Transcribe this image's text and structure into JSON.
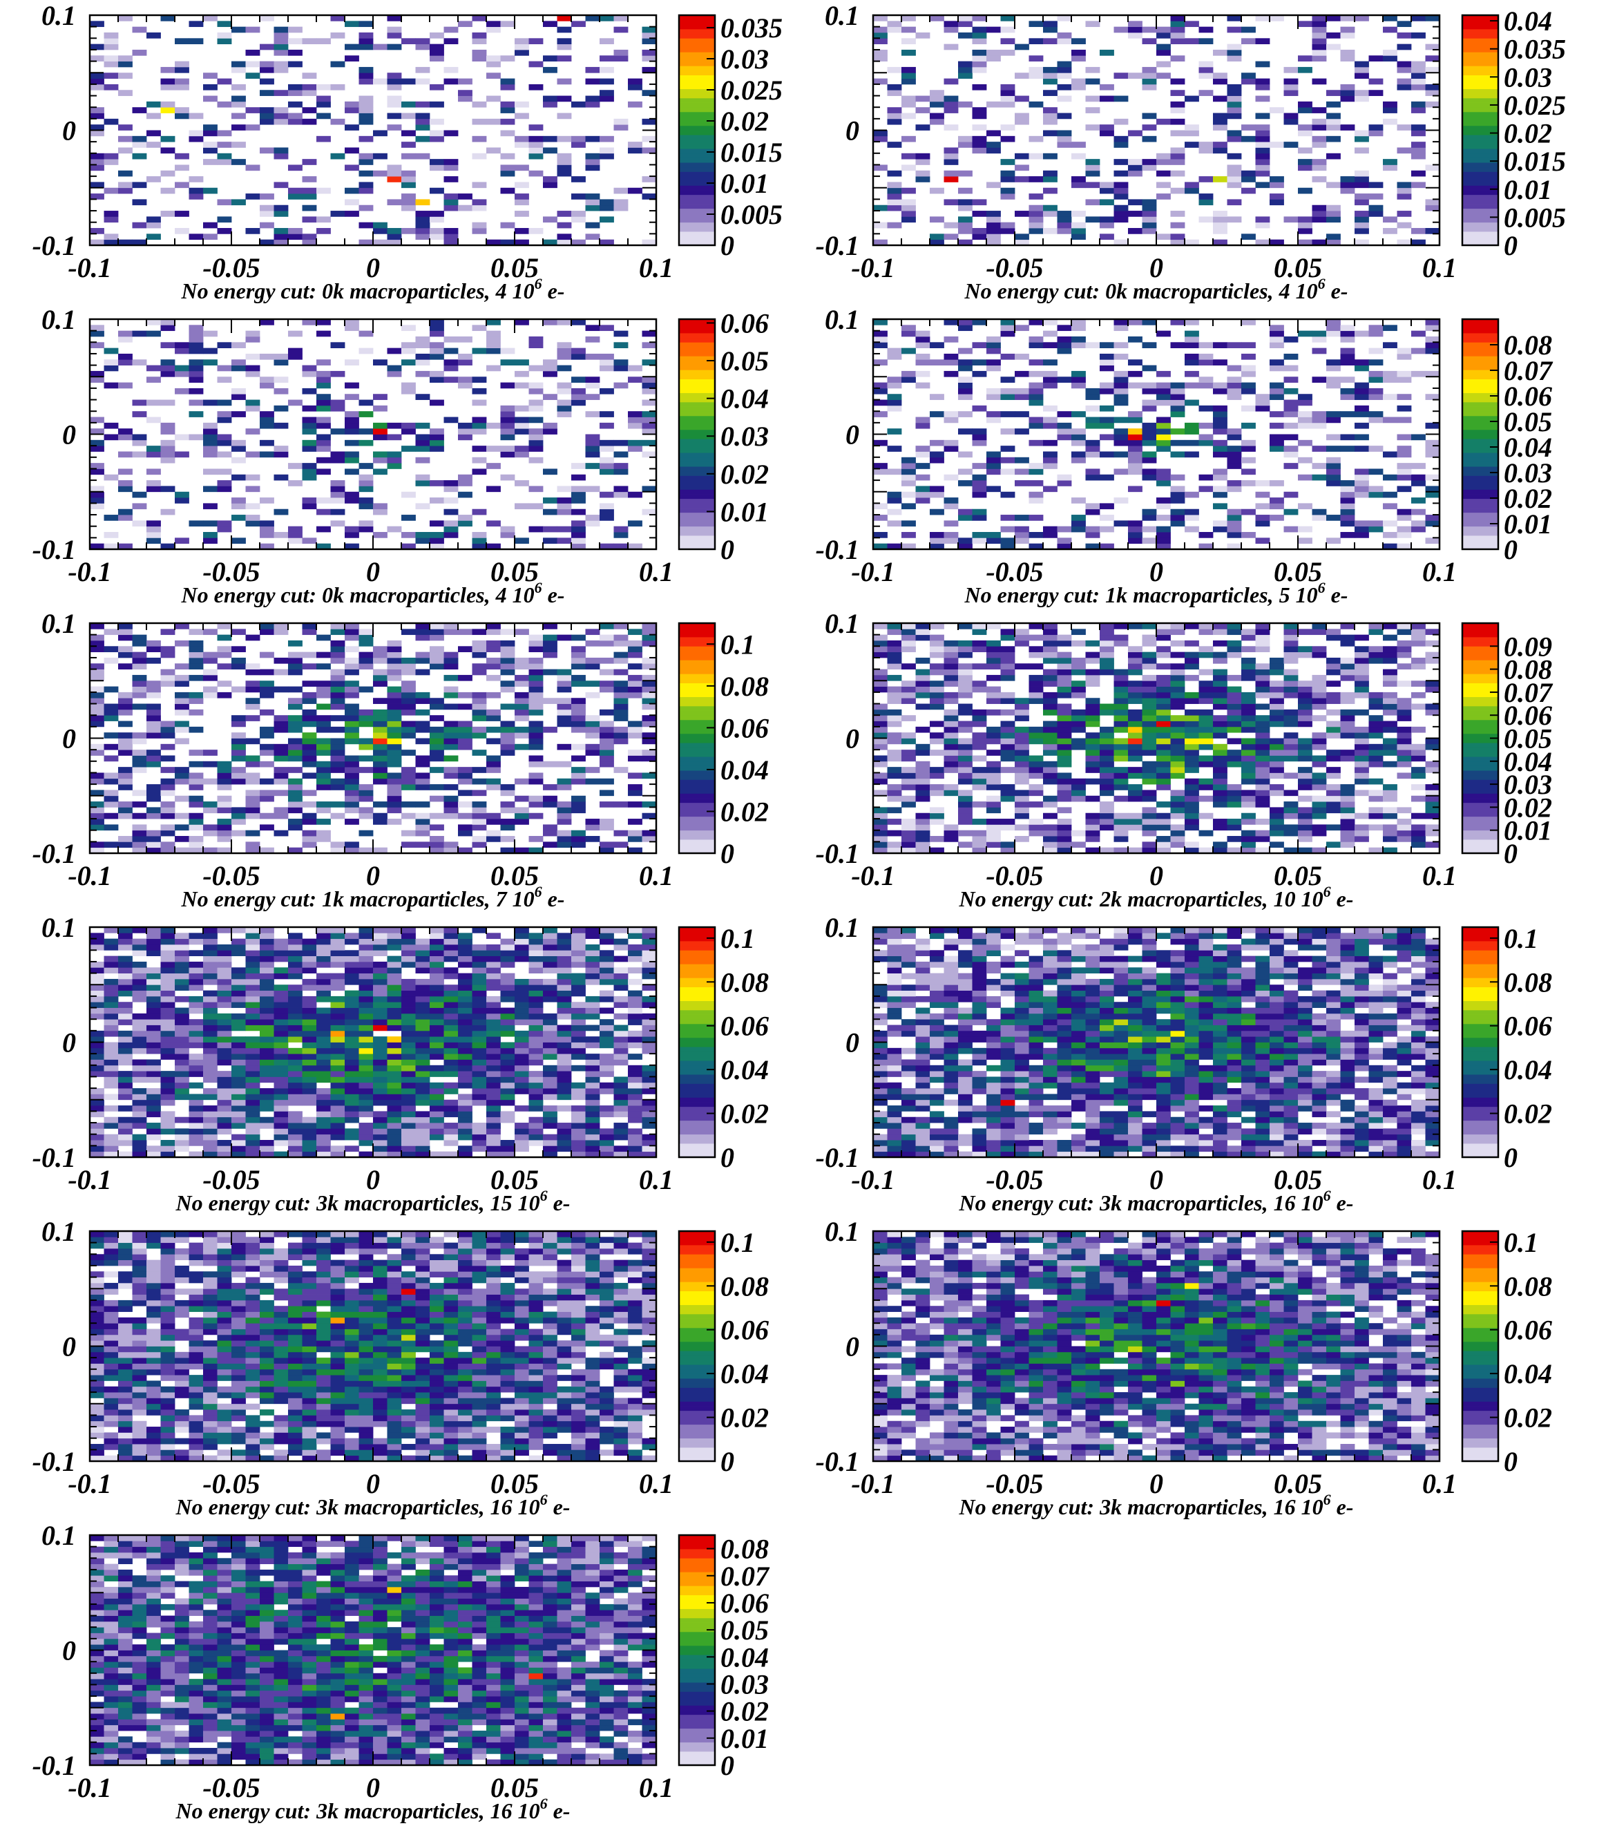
{
  "figure": {
    "columns": 2,
    "colormap": [
      "#ffffff",
      "#e0dcef",
      "#b7acd7",
      "#8c78c0",
      "#5b3fa6",
      "#2d0f8a",
      "#1e2a86",
      "#17457f",
      "#136a7c",
      "#147f67",
      "#1a8c3a",
      "#3aa62a",
      "#7fc31c",
      "#c6d80e",
      "#fff200",
      "#ffc800",
      "#ff9b00",
      "#ff6a00",
      "#f72d0a",
      "#e00000"
    ]
  },
  "chart_data": [
    {
      "type": "heatmap",
      "title": "",
      "caption": "No energy cut: 0k macroparticles, 4 10⁶ e-",
      "caption_main": "No energy cut: 0k macroparticles, 4 10",
      "caption_sup": "6",
      "caption_tail": " e-",
      "xlim": [
        -0.1,
        0.1
      ],
      "ylim": [
        -0.1,
        0.1
      ],
      "x_ticks": [
        "-0.1",
        "-0.05",
        "0",
        "0.05",
        "0.1"
      ],
      "y_ticks": [
        "-0.1",
        "0",
        "0.1"
      ],
      "z_range": [
        0,
        0.037
      ],
      "z_ticks": [
        "0",
        "0.005",
        "0.01",
        "0.015",
        "0.02",
        "0.025",
        "0.03",
        "0.035"
      ],
      "z_tick_values": [
        0,
        0.005,
        0.01,
        0.015,
        0.02,
        0.025,
        0.03,
        0.035
      ],
      "bins": [
        40,
        40
      ],
      "occupancy": 0.32,
      "core_sigma": 0.05,
      "core_weight": 0.0,
      "seed": 11,
      "hot_spots": [
        {
          "x": 0.065,
          "y": 0.098,
          "value": 0.036
        },
        {
          "x": 0.005,
          "y": -0.045,
          "value": 0.034
        },
        {
          "x": 0.018,
          "y": -0.062,
          "value": 0.028
        },
        {
          "x": -0.072,
          "y": 0.015,
          "value": 0.026
        }
      ]
    },
    {
      "type": "heatmap",
      "title": "",
      "caption": "No energy cut: 0k macroparticles, 4 10⁶ e-",
      "caption_main": "No energy cut: 0k macroparticles, 4 10",
      "caption_sup": "6",
      "caption_tail": " e-",
      "xlim": [
        -0.1,
        0.1
      ],
      "ylim": [
        -0.1,
        0.1
      ],
      "x_ticks": [
        "-0.1",
        "-0.05",
        "0",
        "0.05",
        "0.1"
      ],
      "y_ticks": [
        "-0.1",
        "0",
        "0.1"
      ],
      "z_range": [
        0,
        0.041
      ],
      "z_ticks": [
        "0",
        "0.005",
        "0.01",
        "0.015",
        "0.02",
        "0.025",
        "0.03",
        "0.035",
        "0.04"
      ],
      "z_tick_values": [
        0,
        0.005,
        0.01,
        0.015,
        0.02,
        0.025,
        0.03,
        0.035,
        0.04
      ],
      "bins": [
        40,
        40
      ],
      "occupancy": 0.34,
      "core_sigma": 0.05,
      "core_weight": 0.0,
      "seed": 23,
      "hot_spots": [
        {
          "x": -0.072,
          "y": -0.045,
          "value": 0.04
        },
        {
          "x": 0.02,
          "y": -0.045,
          "value": 0.028
        }
      ]
    },
    {
      "type": "heatmap",
      "title": "",
      "caption": "No energy cut: 0k macroparticles, 4 10⁶ e-",
      "caption_main": "No energy cut: 0k macroparticles, 4 10",
      "caption_sup": "6",
      "caption_tail": " e-",
      "xlim": [
        -0.1,
        0.1
      ],
      "ylim": [
        -0.1,
        0.1
      ],
      "x_ticks": [
        "-0.1",
        "-0.05",
        "0",
        "0.05",
        "0.1"
      ],
      "y_ticks": [
        "-0.1",
        "0",
        "0.1"
      ],
      "z_range": [
        0,
        0.061
      ],
      "z_ticks": [
        "0",
        "0.01",
        "0.02",
        "0.03",
        "0.04",
        "0.05",
        "0.06"
      ],
      "z_tick_values": [
        0,
        0.01,
        0.02,
        0.03,
        0.04,
        0.05,
        0.06
      ],
      "bins": [
        40,
        40
      ],
      "occupancy": 0.33,
      "core_sigma": 0.02,
      "core_weight": 0.3,
      "seed": 37,
      "hot_spots": [
        {
          "x": 0.0,
          "y": 0.0,
          "value": 0.06
        },
        {
          "x": 0.0,
          "y": 0.005,
          "value": 0.03
        }
      ]
    },
    {
      "type": "heatmap",
      "title": "",
      "caption": "No energy cut: 1k macroparticles, 5 10⁶ e-",
      "caption_main": "No energy cut: 1k macroparticles, 5 10",
      "caption_sup": "6",
      "caption_tail": " e-",
      "xlim": [
        -0.1,
        0.1
      ],
      "ylim": [
        -0.1,
        0.1
      ],
      "x_ticks": [
        "-0.1",
        "-0.05",
        "0",
        "0.05",
        "0.1"
      ],
      "y_ticks": [
        "-0.1",
        "0",
        "0.1"
      ],
      "z_range": [
        0,
        0.09
      ],
      "z_ticks": [
        "0",
        "0.01",
        "0.02",
        "0.03",
        "0.04",
        "0.05",
        "0.06",
        "0.07",
        "0.08"
      ],
      "z_tick_values": [
        0,
        0.01,
        0.02,
        0.03,
        0.04,
        0.05,
        0.06,
        0.07,
        0.08
      ],
      "bins": [
        40,
        40
      ],
      "occupancy": 0.4,
      "core_sigma": 0.012,
      "core_weight": 0.55,
      "seed": 41,
      "hot_spots": [
        {
          "x": -0.007,
          "y": -0.005,
          "value": 0.088
        },
        {
          "x": -0.007,
          "y": 0.002,
          "value": 0.07
        },
        {
          "x": 0.0,
          "y": 0.005,
          "value": 0.055
        }
      ]
    },
    {
      "type": "heatmap",
      "title": "",
      "caption": "No energy cut: 1k macroparticles, 7 10⁶ e-",
      "caption_main": "No energy cut: 1k macroparticles, 7 10",
      "caption_sup": "6",
      "caption_tail": " e-",
      "xlim": [
        -0.1,
        0.1
      ],
      "ylim": [
        -0.1,
        0.1
      ],
      "x_ticks": [
        "-0.1",
        "-0.05",
        "0",
        "0.05",
        "0.1"
      ],
      "y_ticks": [
        "-0.1",
        "0",
        "0.1"
      ],
      "z_range": [
        0,
        0.11
      ],
      "z_ticks": [
        "0",
        "0.02",
        "0.04",
        "0.06",
        "0.08",
        "0.1"
      ],
      "z_tick_values": [
        0,
        0.02,
        0.04,
        0.06,
        0.08,
        0.1
      ],
      "bins": [
        40,
        40
      ],
      "occupancy": 0.5,
      "core_sigma": 0.025,
      "core_weight": 0.55,
      "seed": 53,
      "hot_spots": [
        {
          "x": 0.0,
          "y": -0.002,
          "value": 0.1
        },
        {
          "x": -0.01,
          "y": 0.012,
          "value": 0.06
        }
      ]
    },
    {
      "type": "heatmap",
      "title": "",
      "caption": "No energy cut: 2k macroparticles, 10 10⁶ e-",
      "caption_main": "No energy cut: 2k macroparticles, 10 10",
      "caption_sup": "6",
      "caption_tail": " e-",
      "xlim": [
        -0.1,
        0.1
      ],
      "ylim": [
        -0.1,
        0.1
      ],
      "x_ticks": [
        "-0.1",
        "-0.05",
        "0",
        "0.05",
        "0.1"
      ],
      "y_ticks": [
        "-0.1",
        "0",
        "0.1"
      ],
      "z_range": [
        0,
        0.1
      ],
      "z_ticks": [
        "0",
        "0.01",
        "0.02",
        "0.03",
        "0.04",
        "0.05",
        "0.06",
        "0.07",
        "0.08",
        "0.09"
      ],
      "z_tick_values": [
        0,
        0.01,
        0.02,
        0.03,
        0.04,
        0.05,
        0.06,
        0.07,
        0.08,
        0.09
      ],
      "bins": [
        40,
        40
      ],
      "occupancy": 0.62,
      "core_sigma": 0.03,
      "core_weight": 0.6,
      "seed": 67,
      "hot_spots": [
        {
          "x": 0.0,
          "y": 0.012,
          "value": 0.095
        },
        {
          "x": -0.007,
          "y": -0.005,
          "value": 0.09
        },
        {
          "x": -0.007,
          "y": 0.005,
          "value": 0.075
        }
      ]
    },
    {
      "type": "heatmap",
      "title": "",
      "caption": "No energy cut: 3k macroparticles, 15 10⁶ e-",
      "caption_main": "No energy cut: 3k macroparticles, 15 10",
      "caption_sup": "6",
      "caption_tail": " e-",
      "xlim": [
        -0.1,
        0.1
      ],
      "ylim": [
        -0.1,
        0.1
      ],
      "x_ticks": [
        "-0.1",
        "-0.05",
        "0",
        "0.05",
        "0.1"
      ],
      "y_ticks": [
        "-0.1",
        "0",
        "0.1"
      ],
      "z_range": [
        0,
        0.105
      ],
      "z_ticks": [
        "0",
        "0.02",
        "0.04",
        "0.06",
        "0.08",
        "0.1"
      ],
      "z_tick_values": [
        0,
        0.02,
        0.04,
        0.06,
        0.08,
        0.1
      ],
      "bins": [
        40,
        40
      ],
      "occupancy": 0.8,
      "core_sigma": 0.035,
      "core_weight": 0.55,
      "seed": 79,
      "hot_spots": [
        {
          "x": 0.0,
          "y": 0.012,
          "value": 0.1
        },
        {
          "x": -0.012,
          "y": 0.005,
          "value": 0.085
        },
        {
          "x": 0.005,
          "y": 0.0,
          "value": 0.08
        }
      ]
    },
    {
      "type": "heatmap",
      "title": "",
      "caption": "No energy cut: 3k macroparticles, 16 10⁶ e-",
      "caption_main": "No energy cut: 3k macroparticles, 16 10",
      "caption_sup": "6",
      "caption_tail": " e-",
      "xlim": [
        -0.1,
        0.1
      ],
      "ylim": [
        -0.1,
        0.1
      ],
      "x_ticks": [
        "-0.1",
        "-0.05",
        "0",
        "0.05",
        "0.1"
      ],
      "y_ticks": [
        "-0.1",
        "0",
        "0.1"
      ],
      "z_range": [
        0,
        0.105
      ],
      "z_ticks": [
        "0",
        "0.02",
        "0.04",
        "0.06",
        "0.08",
        "0.1"
      ],
      "z_tick_values": [
        0,
        0.02,
        0.04,
        0.06,
        0.08,
        0.1
      ],
      "bins": [
        40,
        40
      ],
      "occupancy": 0.82,
      "core_sigma": 0.035,
      "core_weight": 0.5,
      "seed": 83,
      "hot_spots": [
        {
          "x": -0.052,
          "y": -0.052,
          "value": 0.1
        },
        {
          "x": 0.0,
          "y": 0.0,
          "value": 0.07
        }
      ]
    },
    {
      "type": "heatmap",
      "title": "",
      "caption": "No energy cut: 3k macroparticles, 16 10⁶ e-",
      "caption_main": "No energy cut: 3k macroparticles, 16 10",
      "caption_sup": "6",
      "caption_tail": " e-",
      "xlim": [
        -0.1,
        0.1
      ],
      "ylim": [
        -0.1,
        0.1
      ],
      "x_ticks": [
        "-0.1",
        "-0.05",
        "0",
        "0.05",
        "0.1"
      ],
      "y_ticks": [
        "-0.1",
        "0",
        "0.1"
      ],
      "z_range": [
        0,
        0.105
      ],
      "z_ticks": [
        "0",
        "0.02",
        "0.04",
        "0.06",
        "0.08",
        "0.1"
      ],
      "z_tick_values": [
        0,
        0.02,
        0.04,
        0.06,
        0.08,
        0.1
      ],
      "bins": [
        40,
        40
      ],
      "occupancy": 0.84,
      "core_sigma": 0.04,
      "core_weight": 0.45,
      "seed": 97,
      "hot_spots": [
        {
          "x": 0.012,
          "y": 0.045,
          "value": 0.1
        },
        {
          "x": -0.012,
          "y": 0.02,
          "value": 0.085
        }
      ]
    },
    {
      "type": "heatmap",
      "title": "",
      "caption": "No energy cut: 3k macroparticles, 16 10⁶ e-",
      "caption_main": "No energy cut: 3k macroparticles, 16 10",
      "caption_sup": "6",
      "caption_tail": " e-",
      "xlim": [
        -0.1,
        0.1
      ],
      "ylim": [
        -0.1,
        0.1
      ],
      "x_ticks": [
        "-0.1",
        "-0.05",
        "0",
        "0.05",
        "0.1"
      ],
      "y_ticks": [
        "-0.1",
        "0",
        "0.1"
      ],
      "z_range": [
        0,
        0.105
      ],
      "z_ticks": [
        "0",
        "0.02",
        "0.04",
        "0.06",
        "0.08",
        "0.1"
      ],
      "z_tick_values": [
        0,
        0.02,
        0.04,
        0.06,
        0.08,
        0.1
      ],
      "bins": [
        40,
        40
      ],
      "occupancy": 0.83,
      "core_sigma": 0.04,
      "core_weight": 0.45,
      "seed": 101,
      "hot_spots": [
        {
          "x": 0.0,
          "y": 0.038,
          "value": 0.1
        },
        {
          "x": 0.012,
          "y": 0.052,
          "value": 0.075
        }
      ]
    },
    {
      "type": "heatmap",
      "title": "",
      "caption": "No energy cut: 3k macroparticles, 16 10⁶ e-",
      "caption_main": "No energy cut: 3k macroparticles, 16 10",
      "caption_sup": "6",
      "caption_tail": " e-",
      "xlim": [
        -0.1,
        0.1
      ],
      "ylim": [
        -0.1,
        0.1
      ],
      "x_ticks": [
        "-0.1",
        "-0.05",
        "0",
        "0.05",
        "0.1"
      ],
      "y_ticks": [
        "-0.1",
        "0",
        "0.1"
      ],
      "z_range": [
        0,
        0.085
      ],
      "z_ticks": [
        "0",
        "0.01",
        "0.02",
        "0.03",
        "0.04",
        "0.05",
        "0.06",
        "0.07",
        "0.08"
      ],
      "z_tick_values": [
        0,
        0.01,
        0.02,
        0.03,
        0.04,
        0.05,
        0.06,
        0.07,
        0.08
      ],
      "bins": [
        40,
        40
      ],
      "occupancy": 0.86,
      "core_sigma": 0.06,
      "core_weight": 0.3,
      "seed": 113,
      "hot_spots": [
        {
          "x": 0.058,
          "y": -0.025,
          "value": 0.08
        },
        {
          "x": -0.012,
          "y": -0.058,
          "value": 0.07
        },
        {
          "x": 0.005,
          "y": 0.052,
          "value": 0.065
        }
      ]
    }
  ]
}
